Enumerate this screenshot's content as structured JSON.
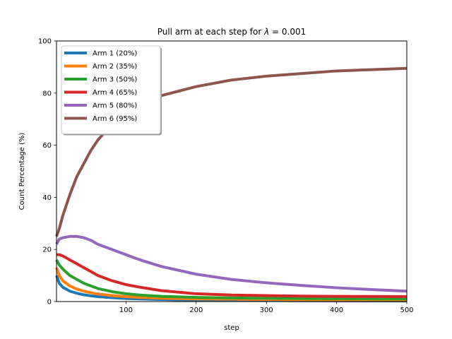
{
  "chart_data": {
    "type": "line",
    "title_prefix": "Pull arm at each step for ",
    "title_symbol": "λ",
    "title_suffix": " = 0.001",
    "xlabel": "step",
    "ylabel": "Count Percentage (%)",
    "xlim": [
      1,
      500
    ],
    "ylim": [
      0,
      100
    ],
    "xticks": [
      100,
      200,
      300,
      400,
      500
    ],
    "yticks": [
      0,
      20,
      40,
      60,
      80,
      100
    ],
    "grid": false,
    "legend_position": "top-left",
    "x": [
      1,
      5,
      10,
      20,
      30,
      40,
      50,
      60,
      80,
      100,
      120,
      150,
      200,
      250,
      300,
      350,
      400,
      450,
      500
    ],
    "series": [
      {
        "name": "Arm 1 (20%)",
        "color": "#1f77b4",
        "values": [
          10,
          7,
          5.5,
          4,
          3.2,
          2.6,
          2.2,
          1.9,
          1.5,
          1.2,
          1.0,
          0.8,
          0.6,
          0.5,
          0.4,
          0.35,
          0.3,
          0.28,
          0.25
        ]
      },
      {
        "name": "Arm 2 (35%)",
        "color": "#ff7f0e",
        "values": [
          13,
          10,
          8,
          6,
          4.8,
          4,
          3.4,
          2.9,
          2.3,
          1.9,
          1.6,
          1.3,
          1.0,
          0.9,
          0.8,
          0.7,
          0.65,
          0.6,
          0.55
        ]
      },
      {
        "name": "Arm 3 (50%)",
        "color": "#2ca02c",
        "values": [
          16,
          14,
          12.5,
          10,
          8.5,
          7,
          6,
          5,
          3.8,
          3,
          2.5,
          2,
          1.6,
          1.4,
          1.3,
          1.2,
          1.1,
          1.05,
          1.0
        ]
      },
      {
        "name": "Arm 4 (65%)",
        "color": "#d62728",
        "values": [
          18,
          18,
          17.5,
          16,
          14.5,
          13,
          11.5,
          10,
          8,
          6.5,
          5.5,
          4.2,
          3,
          2.5,
          2.3,
          2.1,
          2.0,
          1.95,
          1.9
        ]
      },
      {
        "name": "Arm 5 (80%)",
        "color": "#9467bd",
        "values": [
          22,
          24,
          24.5,
          25,
          25,
          24.5,
          23.5,
          22,
          20,
          18,
          16,
          13.5,
          10.5,
          8.5,
          7.2,
          6.2,
          5.3,
          4.6,
          4.0
        ]
      },
      {
        "name": "Arm 6 (95%)",
        "color": "#8c564b",
        "values": [
          25,
          28,
          33,
          41,
          48,
          53,
          58,
          62,
          68,
          72,
          75.5,
          79,
          82.5,
          85,
          86.5,
          87.5,
          88.5,
          89,
          89.5
        ]
      }
    ]
  }
}
